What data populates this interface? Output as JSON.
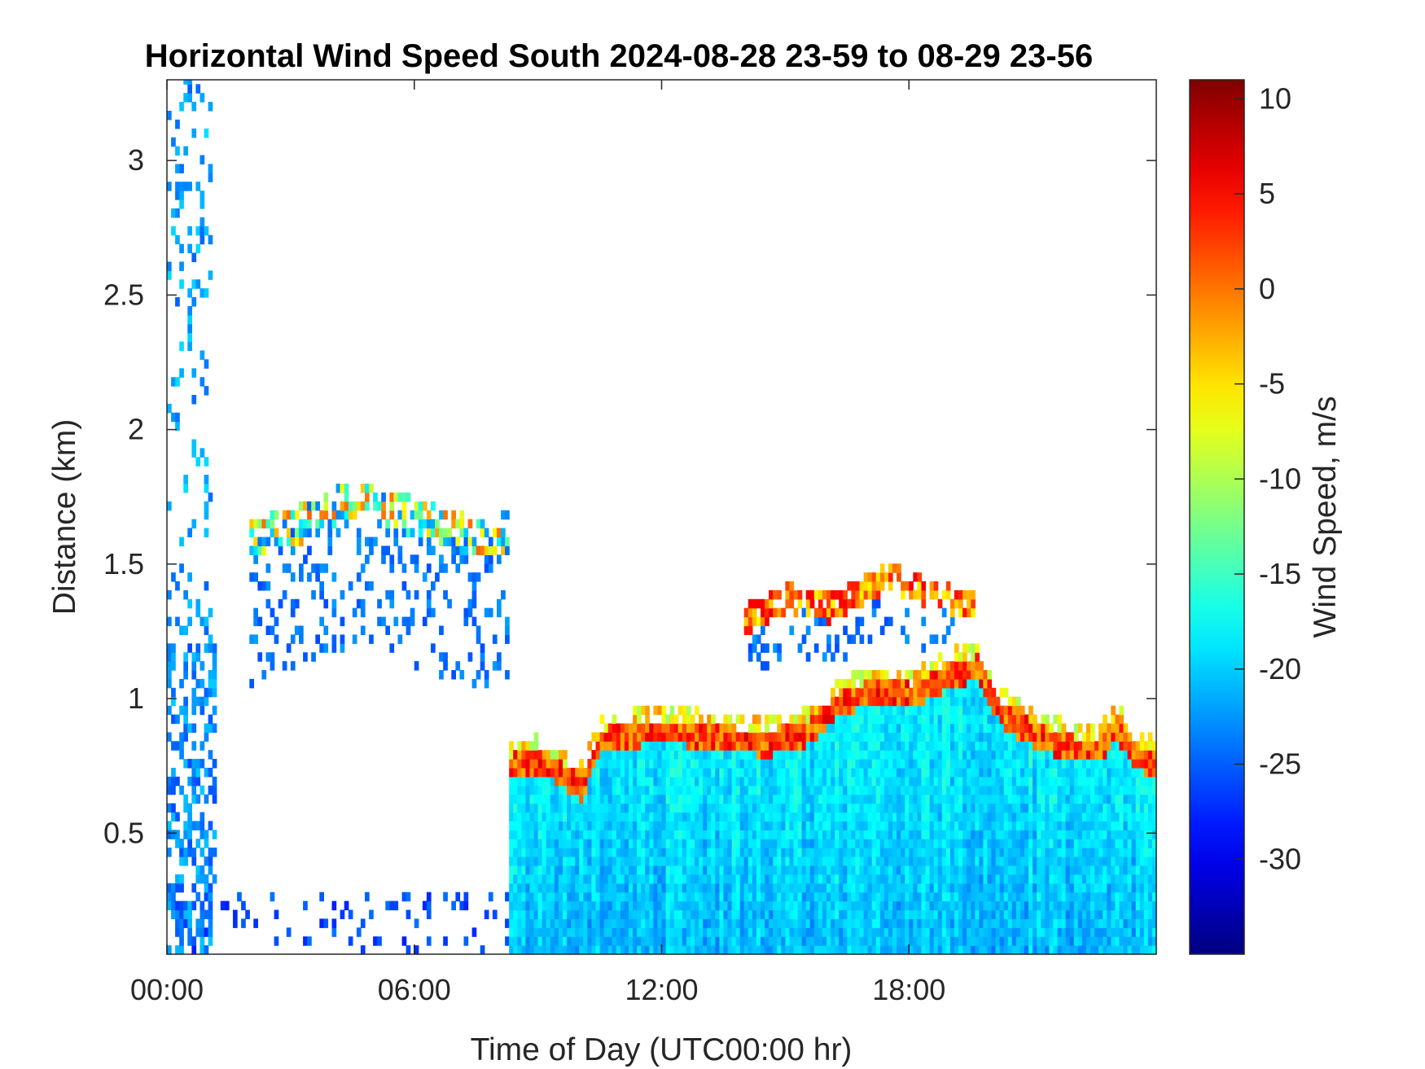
{
  "chart_data": {
    "type": "heatmap",
    "title": "Horizontal Wind Speed South 2024-08-28 23-59 to 08-29 23-56",
    "xlabel": "Time of Day (UTC00:00 hr)",
    "ylabel": "Distance (km)",
    "colorbar_label": "Wind Speed, m/s",
    "colormap": "jet",
    "x_unit": "hours",
    "xlim": [
      0,
      24
    ],
    "ylim": [
      0.05,
      3.3
    ],
    "clim": [
      -35,
      11
    ],
    "x_ticks": [
      0,
      6,
      12,
      18
    ],
    "x_tick_labels": [
      "00:00",
      "06:00",
      "12:00",
      "18:00"
    ],
    "y_ticks": [
      0.5,
      1,
      1.5,
      2,
      2.5,
      3
    ],
    "y_tick_labels": [
      "0.5",
      "1",
      "1.5",
      "2",
      "2.5",
      "3"
    ],
    "c_ticks": [
      10,
      5,
      0,
      -5,
      -10,
      -15,
      -20,
      -25,
      -30
    ],
    "c_tick_labels": [
      "10",
      "5",
      "0",
      "-5",
      "-10",
      "-15",
      "-20",
      "-25",
      "-30"
    ],
    "grid": false,
    "structure": {
      "boundary_layer_top_km": [
        [
          8.2,
          0.75
        ],
        [
          9.0,
          0.78
        ],
        [
          9.6,
          0.72
        ],
        [
          10.0,
          0.68
        ],
        [
          10.5,
          0.85
        ],
        [
          11.5,
          0.88
        ],
        [
          12.5,
          0.88
        ],
        [
          13.5,
          0.86
        ],
        [
          14.5,
          0.84
        ],
        [
          15.5,
          0.88
        ],
        [
          16.2,
          0.98
        ],
        [
          17.0,
          1.03
        ],
        [
          18.0,
          1.02
        ],
        [
          19.0,
          1.1
        ],
        [
          19.6,
          1.12
        ],
        [
          20.2,
          0.95
        ],
        [
          21.0,
          0.87
        ],
        [
          22.0,
          0.82
        ],
        [
          22.6,
          0.82
        ],
        [
          23.0,
          0.9
        ],
        [
          23.4,
          0.8
        ],
        [
          24.0,
          0.76
        ]
      ],
      "elevated_layer_km": [
        [
          14.0,
          1.28
        ],
        [
          15.0,
          1.36
        ],
        [
          16.0,
          1.32
        ],
        [
          17.0,
          1.4
        ],
        [
          17.5,
          1.44
        ],
        [
          18.0,
          1.4
        ],
        [
          18.8,
          1.36
        ],
        [
          19.5,
          1.33
        ]
      ],
      "night_residual_layer_km": [
        [
          2.0,
          1.58
        ],
        [
          3.0,
          1.62
        ],
        [
          4.0,
          1.7
        ],
        [
          5.0,
          1.72
        ],
        [
          6.0,
          1.65
        ],
        [
          7.0,
          1.6
        ],
        [
          7.8,
          1.58
        ],
        [
          8.5,
          1.62
        ],
        [
          9.5,
          1.7
        ]
      ]
    }
  }
}
